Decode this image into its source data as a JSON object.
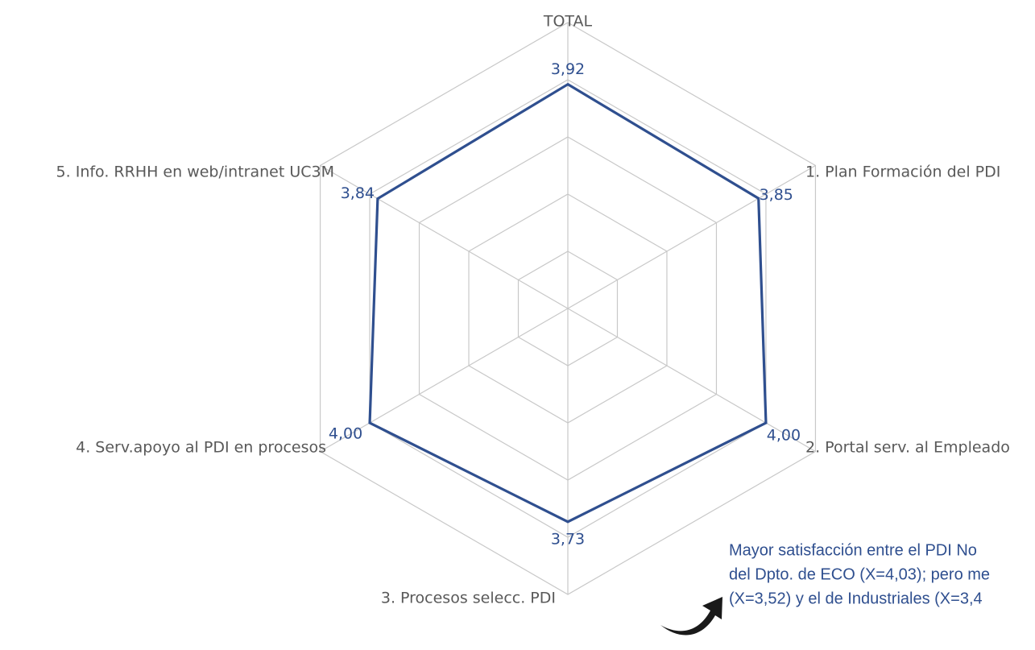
{
  "chart_data": {
    "type": "radar",
    "categories": [
      "TOTAL",
      "1. Plan Formación del PDI",
      "2. Portal serv. al Empleado",
      "3. Procesos selecc. PDI",
      "4. Serv.apoyo al PDI en procesos",
      "5. Info. RRHH en web/intranet UC3M"
    ],
    "values": [
      3.92,
      3.85,
      4.0,
      3.73,
      4.0,
      3.84
    ],
    "value_labels": [
      "3,92",
      "3,85",
      "4,00",
      "3,73",
      "4,00",
      "3,84"
    ],
    "rlim": [
      0,
      5
    ],
    "grid_levels": 5,
    "series_color": "#2f4f8f",
    "grid_color": "#c8c8c8"
  },
  "annotation": {
    "lines": [
      "Mayor satisfacción entre el PDI No",
      "del Dpto. de ECO (X=4,03); pero me",
      "(X=3,52) y el de Industriales (X=3,4"
    ],
    "color": "#2f4f8f",
    "arrow_icon": "curved-arrow-icon"
  }
}
